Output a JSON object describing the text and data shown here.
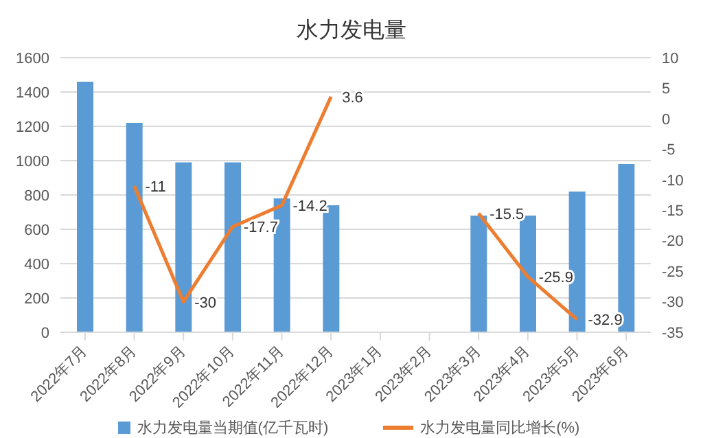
{
  "chart_data": {
    "type": "bar",
    "title": "水力发电量",
    "categories": [
      "2022年7月",
      "2022年8月",
      "2022年9月",
      "2022年10月",
      "2022年11月",
      "2022年12月",
      "2023年1月",
      "2023年2月",
      "2023年3月",
      "2023年4月",
      "2023年5月",
      "2023年6月"
    ],
    "series": [
      {
        "name": "水力发电量当期值(亿千瓦时)",
        "color": "#5b9bd5",
        "values": [
          1460,
          1220,
          990,
          990,
          780,
          740,
          null,
          null,
          680,
          680,
          820,
          980
        ]
      },
      {
        "name": "水力发电量同比增长(%)",
        "type": "line",
        "axis": "y2",
        "color": "#ed7d31",
        "values": [
          null,
          -11,
          -30,
          -17.7,
          -14.2,
          3.6,
          null,
          null,
          -15.5,
          -25.9,
          -32.9,
          null
        ],
        "value_labels": [
          null,
          "-11",
          "-30",
          "-17.7",
          "-14.2",
          "3.6",
          null,
          null,
          "-15.5",
          "-25.9",
          "-32.9",
          null
        ]
      }
    ],
    "ylim": [
      0,
      1600
    ],
    "yticks": [
      0,
      200,
      400,
      600,
      800,
      1000,
      1200,
      1400,
      1600
    ],
    "y2lim": [
      -35,
      10
    ],
    "y2ticks": [
      -35,
      -30,
      -25,
      -20,
      -15,
      -10,
      -5,
      0,
      5,
      10
    ],
    "grid": "y",
    "legend": "bottom",
    "marker": "none"
  }
}
